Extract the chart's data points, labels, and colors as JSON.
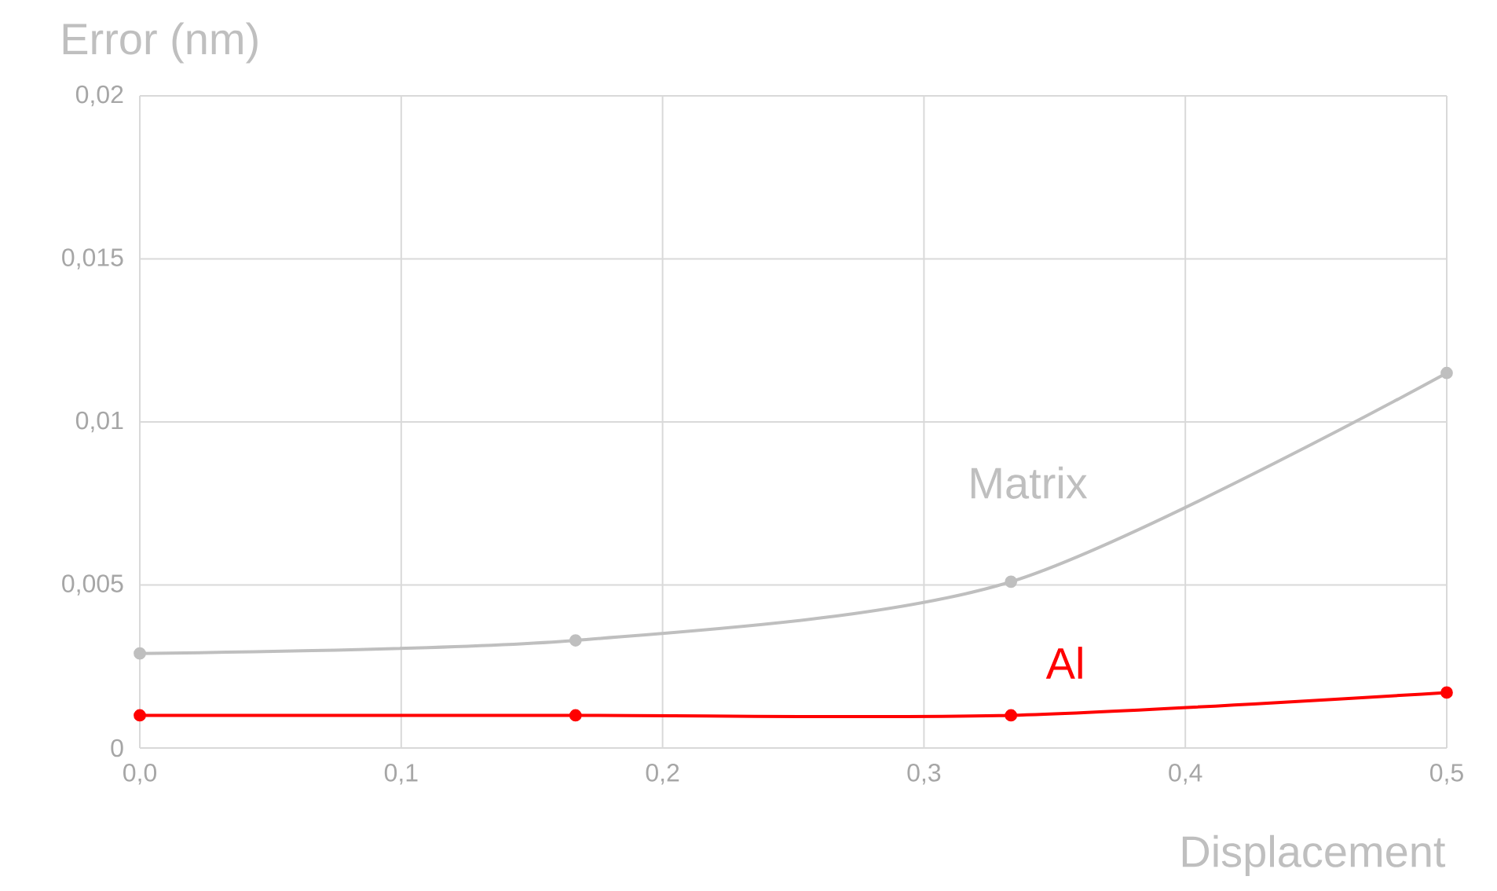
{
  "chart_data": {
    "type": "line",
    "xlabel": "Displacement",
    "ylabel": "Error (nm)",
    "x": [
      0,
      0.1667,
      0.3333,
      0.5
    ],
    "series": [
      {
        "name": "Matrix",
        "color": "#bfbfbf",
        "values": [
          0.0029,
          0.0033,
          0.0051,
          0.0115
        ]
      },
      {
        "name": "Al",
        "color": "#ff0000",
        "values": [
          0.001,
          0.001,
          0.001,
          0.0017
        ]
      }
    ],
    "xlim": [
      0,
      0.5
    ],
    "ylim": [
      0,
      0.02
    ],
    "xticks": [
      {
        "value": 0,
        "label": "0,0"
      },
      {
        "value": 0.1,
        "label": "0,1"
      },
      {
        "value": 0.2,
        "label": "0,2"
      },
      {
        "value": 0.3,
        "label": "0,3"
      },
      {
        "value": 0.4,
        "label": "0,4"
      },
      {
        "value": 0.5,
        "label": "0,5"
      }
    ],
    "yticks": [
      0,
      {
        "value": 0.005,
        "label": "0,005"
      },
      {
        "value": 0.01,
        "label": "0,01"
      },
      {
        "value": 0.015,
        "label": "0,015"
      },
      {
        "value": 0.02,
        "label": "0,02"
      }
    ],
    "grid": true,
    "legend": false,
    "marker": "circle",
    "line_style": "solid"
  }
}
